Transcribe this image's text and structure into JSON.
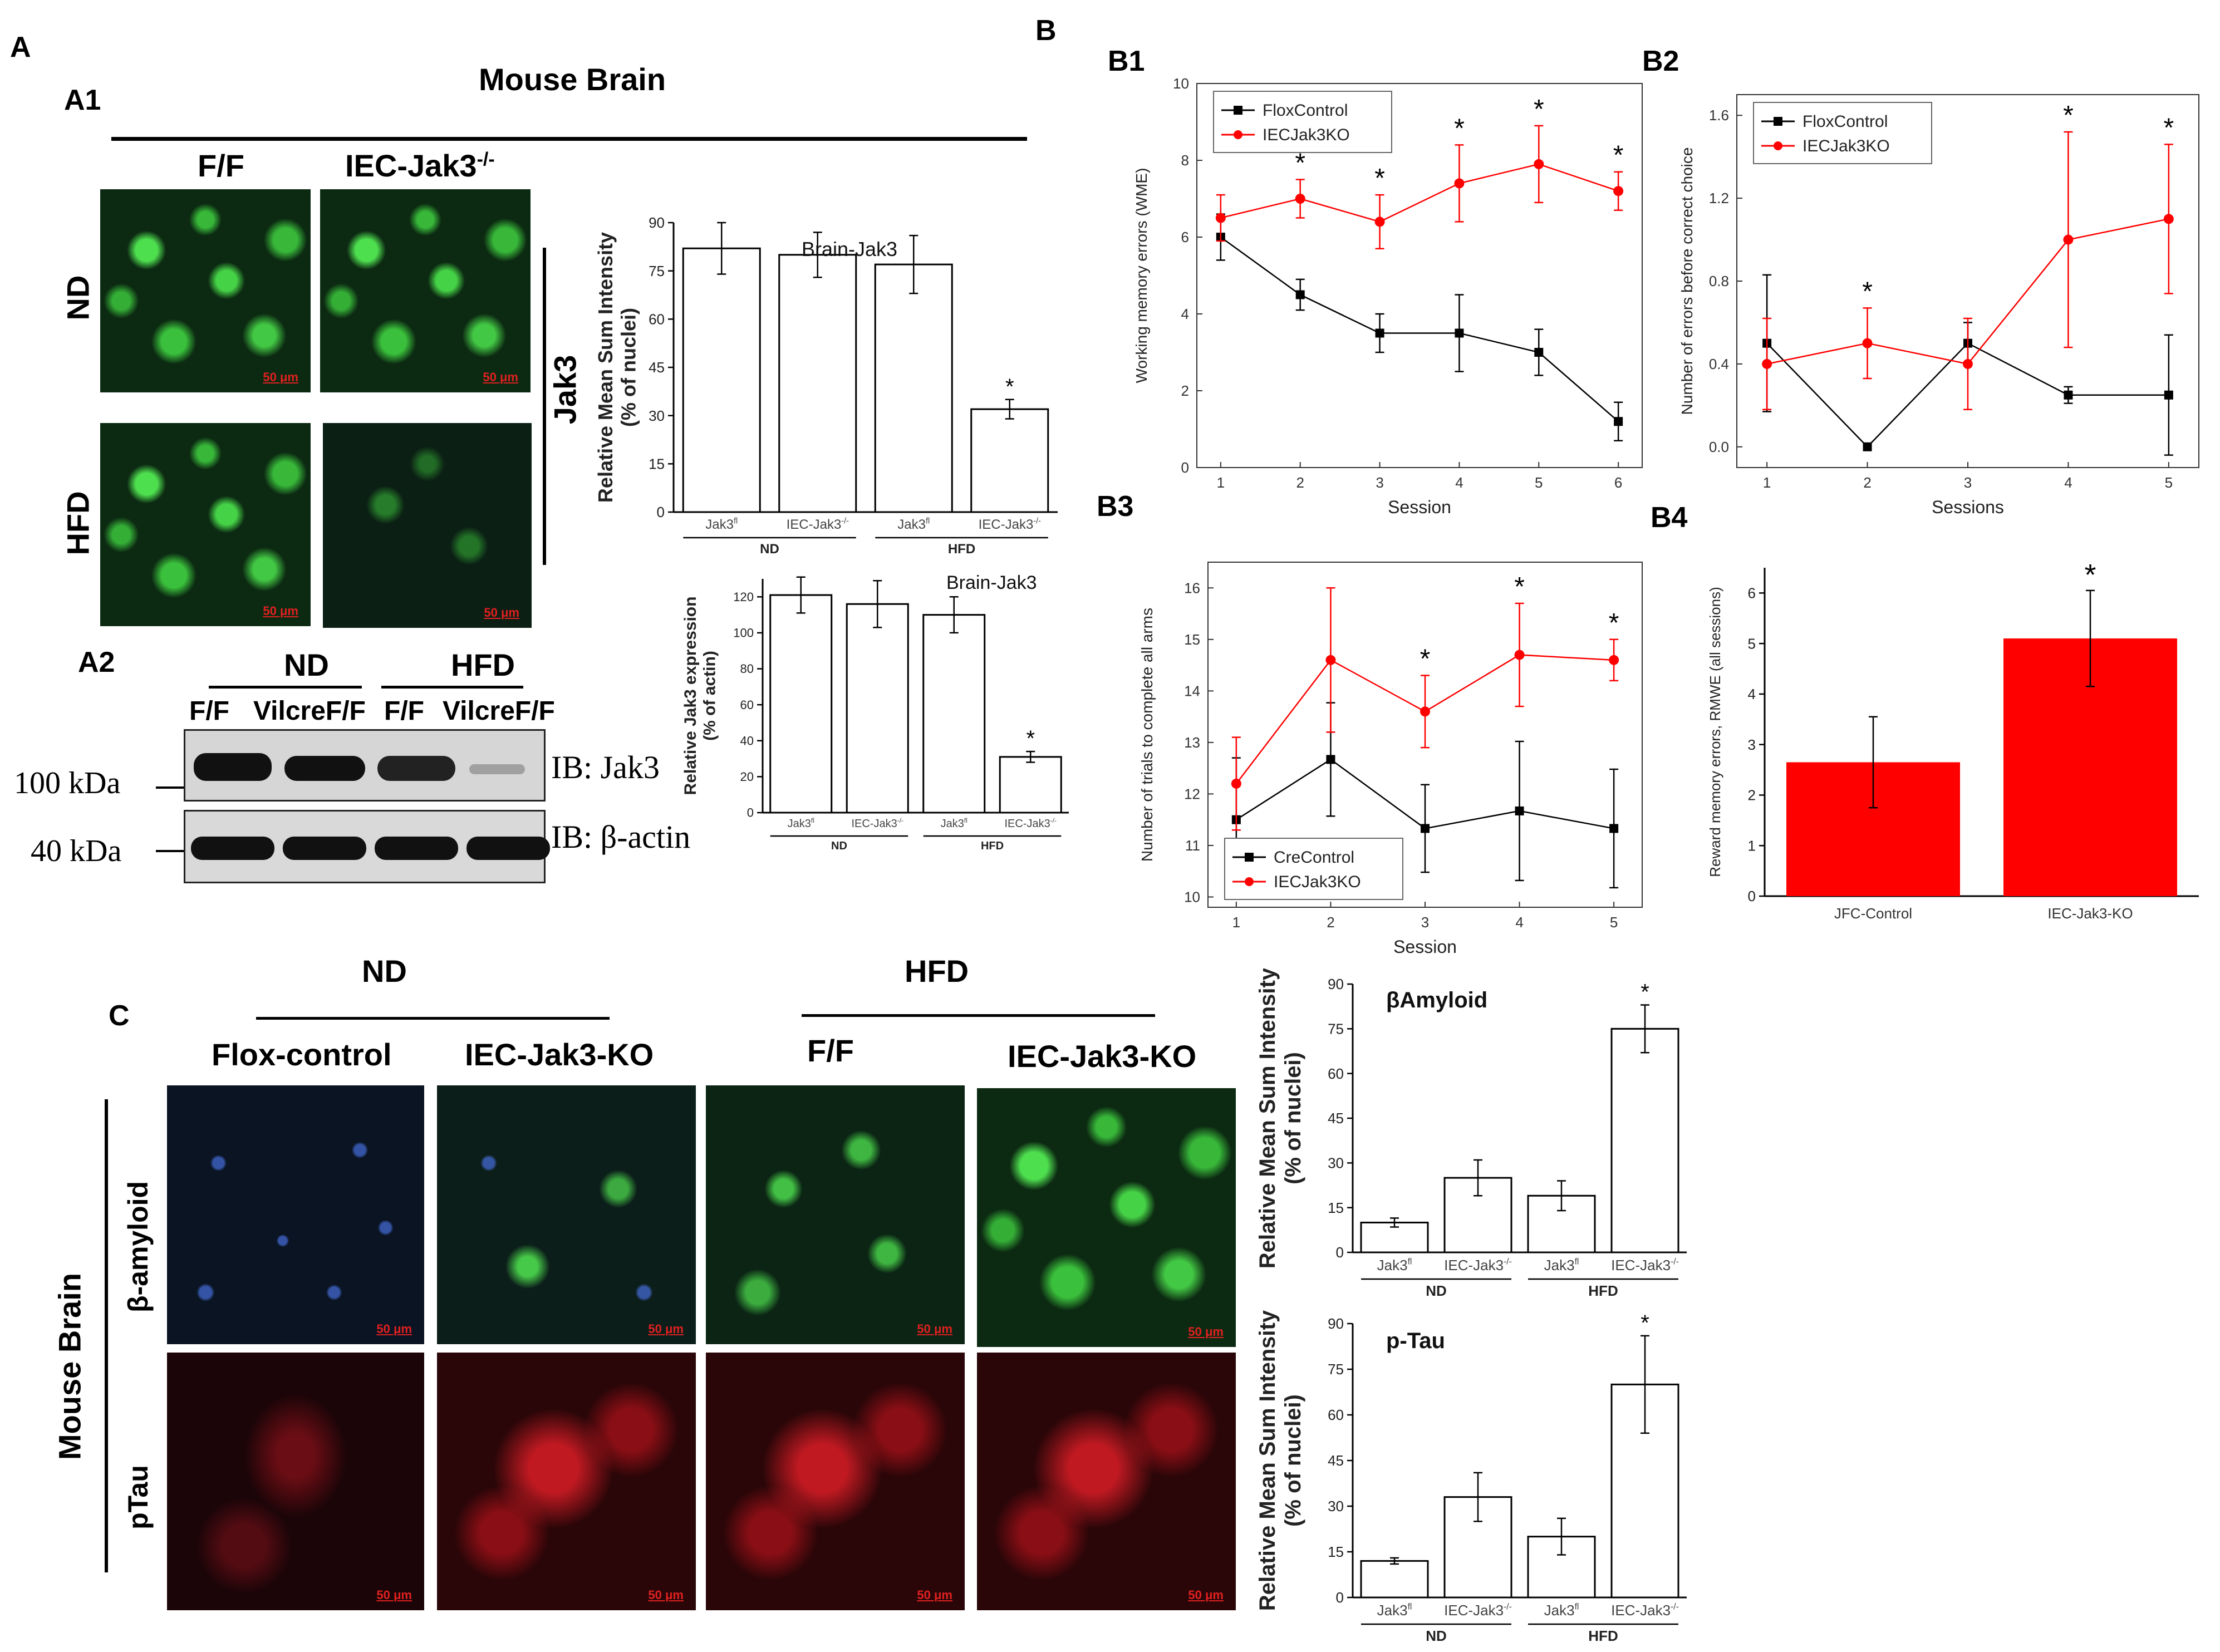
{
  "panels": {
    "A": "A",
    "A1": "A1",
    "A2": "A2",
    "B": "B",
    "B1": "B1",
    "B2": "B2",
    "B3": "B3",
    "B4": "B4",
    "C": "C"
  },
  "a1": {
    "title": "Mouse Brain",
    "col_ff": "F/F",
    "col_ko": "IEC-Jak3",
    "col_ko_sup": "-/-",
    "row_nd": "ND",
    "row_hfd": "HFD",
    "side_label": "Jak3",
    "scale_bar": "50 μm"
  },
  "a2": {
    "nd": "ND",
    "hfd": "HFD",
    "lanes": [
      "F/F",
      "VilcreF/F",
      "F/F",
      "VilcreF/F"
    ],
    "mw_100": "100 kDa",
    "mw_40": "40 kDa",
    "ib_jak3": "IB: Jak3",
    "ib_actin": "IB: β-actin"
  },
  "colors": {
    "black_series": "#000000",
    "red_series": "#ff0000",
    "bar_red": "#ff0000"
  },
  "c": {
    "nd": "ND",
    "hfd": "HFD",
    "cols": [
      "Flox-control",
      "IEC-Jak3-KO",
      "F/F",
      "IEC-Jak3-KO"
    ],
    "row_amyloid": "β-amyloid",
    "row_ptau": "pTau",
    "side": "Mouse Brain",
    "scale_bar": "50 μm"
  },
  "chart_data": [
    {
      "id": "a1-bar",
      "type": "bar",
      "annotation": "Brain-Jak3",
      "ylabel": "Relative Mean Sum Intensity\n(% of nuclei)",
      "categories": [
        "Jak3fl",
        "IEC-Jak3-/-",
        "Jak3fl",
        "IEC-Jak3-/-"
      ],
      "groups": [
        "ND",
        "HFD"
      ],
      "values": [
        82,
        80,
        77,
        32
      ],
      "errors": [
        8,
        7,
        9,
        3
      ],
      "significant": [
        false,
        false,
        false,
        true
      ],
      "ylim": [
        0,
        90
      ],
      "yticks": [
        0,
        15,
        30,
        45,
        60,
        75,
        90
      ]
    },
    {
      "id": "a2-bar",
      "type": "bar",
      "annotation": "Brain-Jak3",
      "ylabel": "Relative Jak3 expression\n(% of actin)",
      "categories": [
        "Jak3fl",
        "IEC-Jak3-/-",
        "Jak3fl",
        "IEC-Jak3-/-"
      ],
      "groups": [
        "ND",
        "HFD"
      ],
      "values": [
        121,
        116,
        110,
        31
      ],
      "errors": [
        10,
        13,
        10,
        3
      ],
      "significant": [
        false,
        false,
        false,
        true
      ],
      "ylim": [
        0,
        130
      ],
      "yticks": [
        0,
        20,
        40,
        60,
        80,
        100,
        120
      ]
    },
    {
      "id": "b1-line",
      "type": "line",
      "xlabel": "Session",
      "ylabel": "Working memory errors (WME)",
      "x": [
        1,
        2,
        3,
        4,
        5,
        6
      ],
      "xlim": [
        0.7,
        6.3
      ],
      "ylim": [
        0,
        10
      ],
      "yticks": [
        0,
        2,
        4,
        6,
        8,
        10
      ],
      "legend": "top-left",
      "series": [
        {
          "name": "FloxControl",
          "color": "#000000",
          "values": [
            6.0,
            4.5,
            3.5,
            3.5,
            3.0,
            1.2
          ],
          "errors": [
            0.6,
            0.4,
            0.5,
            1.0,
            0.6,
            0.5
          ]
        },
        {
          "name": "IECJak3KO",
          "color": "#ff0000",
          "values": [
            6.5,
            7.0,
            6.4,
            7.4,
            7.9,
            7.2
          ],
          "errors": [
            0.6,
            0.5,
            0.7,
            1.0,
            1.0,
            0.5
          ]
        }
      ],
      "significant_x": [
        2,
        3,
        4,
        5,
        6
      ]
    },
    {
      "id": "b2-line",
      "type": "line",
      "xlabel": "Sessions",
      "ylabel": "Number of errors before correct choice",
      "x": [
        1,
        2,
        3,
        4,
        5
      ],
      "xlim": [
        0.7,
        5.3
      ],
      "ylim": [
        -0.1,
        1.7
      ],
      "yticks": [
        0.0,
        0.4,
        0.8,
        1.2,
        1.6
      ],
      "legend": "top-left",
      "series": [
        {
          "name": "FloxControl",
          "color": "#000000",
          "values": [
            0.5,
            0.0,
            0.5,
            0.25,
            0.25
          ],
          "errors": [
            0.33,
            0.0,
            0.1,
            0.04,
            0.29
          ]
        },
        {
          "name": "IECJak3KO",
          "color": "#ff0000",
          "values": [
            0.4,
            0.5,
            0.4,
            1.0,
            1.1
          ],
          "errors": [
            0.22,
            0.17,
            0.22,
            0.52,
            0.36
          ]
        }
      ],
      "significant_x": [
        2,
        4,
        5
      ]
    },
    {
      "id": "b3-line",
      "type": "line",
      "xlabel": "Session",
      "ylabel": "Number of trials to complete all arms",
      "x": [
        1,
        2,
        3,
        4,
        5
      ],
      "xlim": [
        0.7,
        5.3
      ],
      "ylim": [
        9.8,
        16.5
      ],
      "yticks": [
        10,
        11,
        12,
        13,
        14,
        15,
        16
      ],
      "legend": "bottom-left",
      "series": [
        {
          "name": "CreControl",
          "color": "#000000",
          "values": [
            11.5,
            12.67,
            11.33,
            11.67,
            11.33
          ],
          "errors": [
            1.2,
            1.1,
            0.85,
            1.35,
            1.15
          ]
        },
        {
          "name": "IECJak3KO",
          "color": "#ff0000",
          "values": [
            12.2,
            14.6,
            13.6,
            14.7,
            14.6
          ],
          "errors": [
            0.9,
            1.4,
            0.7,
            1.0,
            0.4
          ]
        }
      ],
      "significant_x": [
        3,
        4,
        5
      ]
    },
    {
      "id": "b4-bar",
      "type": "bar",
      "ylabel": "Reward memory errors, RMWE (all sessions)",
      "categories": [
        "JFC-Control",
        "IEC-Jak3-KO"
      ],
      "values": [
        2.65,
        5.1
      ],
      "errors": [
        0.9,
        0.95
      ],
      "significant": [
        false,
        true
      ],
      "ylim": [
        0,
        6.5
      ],
      "yticks": [
        0,
        1,
        2,
        3,
        4,
        5,
        6
      ]
    },
    {
      "id": "c-amyloid",
      "type": "bar",
      "annotation": "βAmyloid",
      "ylabel": "Relative Mean Sum Intensity\n(% of nuclei)",
      "categories": [
        "Jak3fl",
        "IEC-Jak3-/-",
        "Jak3fl",
        "IEC-Jak3-/-"
      ],
      "groups": [
        "ND",
        "HFD"
      ],
      "values": [
        10,
        25,
        19,
        75
      ],
      "errors": [
        1.5,
        6,
        5,
        8
      ],
      "significant": [
        false,
        false,
        false,
        true
      ],
      "ylim": [
        0,
        90
      ],
      "yticks": [
        0,
        15,
        30,
        45,
        60,
        75,
        90
      ]
    },
    {
      "id": "c-ptau",
      "type": "bar",
      "annotation": "p-Tau",
      "ylabel": "Relative Mean Sum Intensity\n(% of nuclei)",
      "categories": [
        "Jak3fl",
        "IEC-Jak3-/-",
        "Jak3fl",
        "IEC-Jak3-/-"
      ],
      "groups": [
        "ND",
        "HFD"
      ],
      "values": [
        12,
        33,
        20,
        70
      ],
      "errors": [
        1,
        8,
        6,
        16
      ],
      "significant": [
        false,
        false,
        false,
        true
      ],
      "ylim": [
        0,
        90
      ],
      "yticks": [
        0,
        15,
        30,
        45,
        60,
        75,
        90
      ]
    }
  ]
}
